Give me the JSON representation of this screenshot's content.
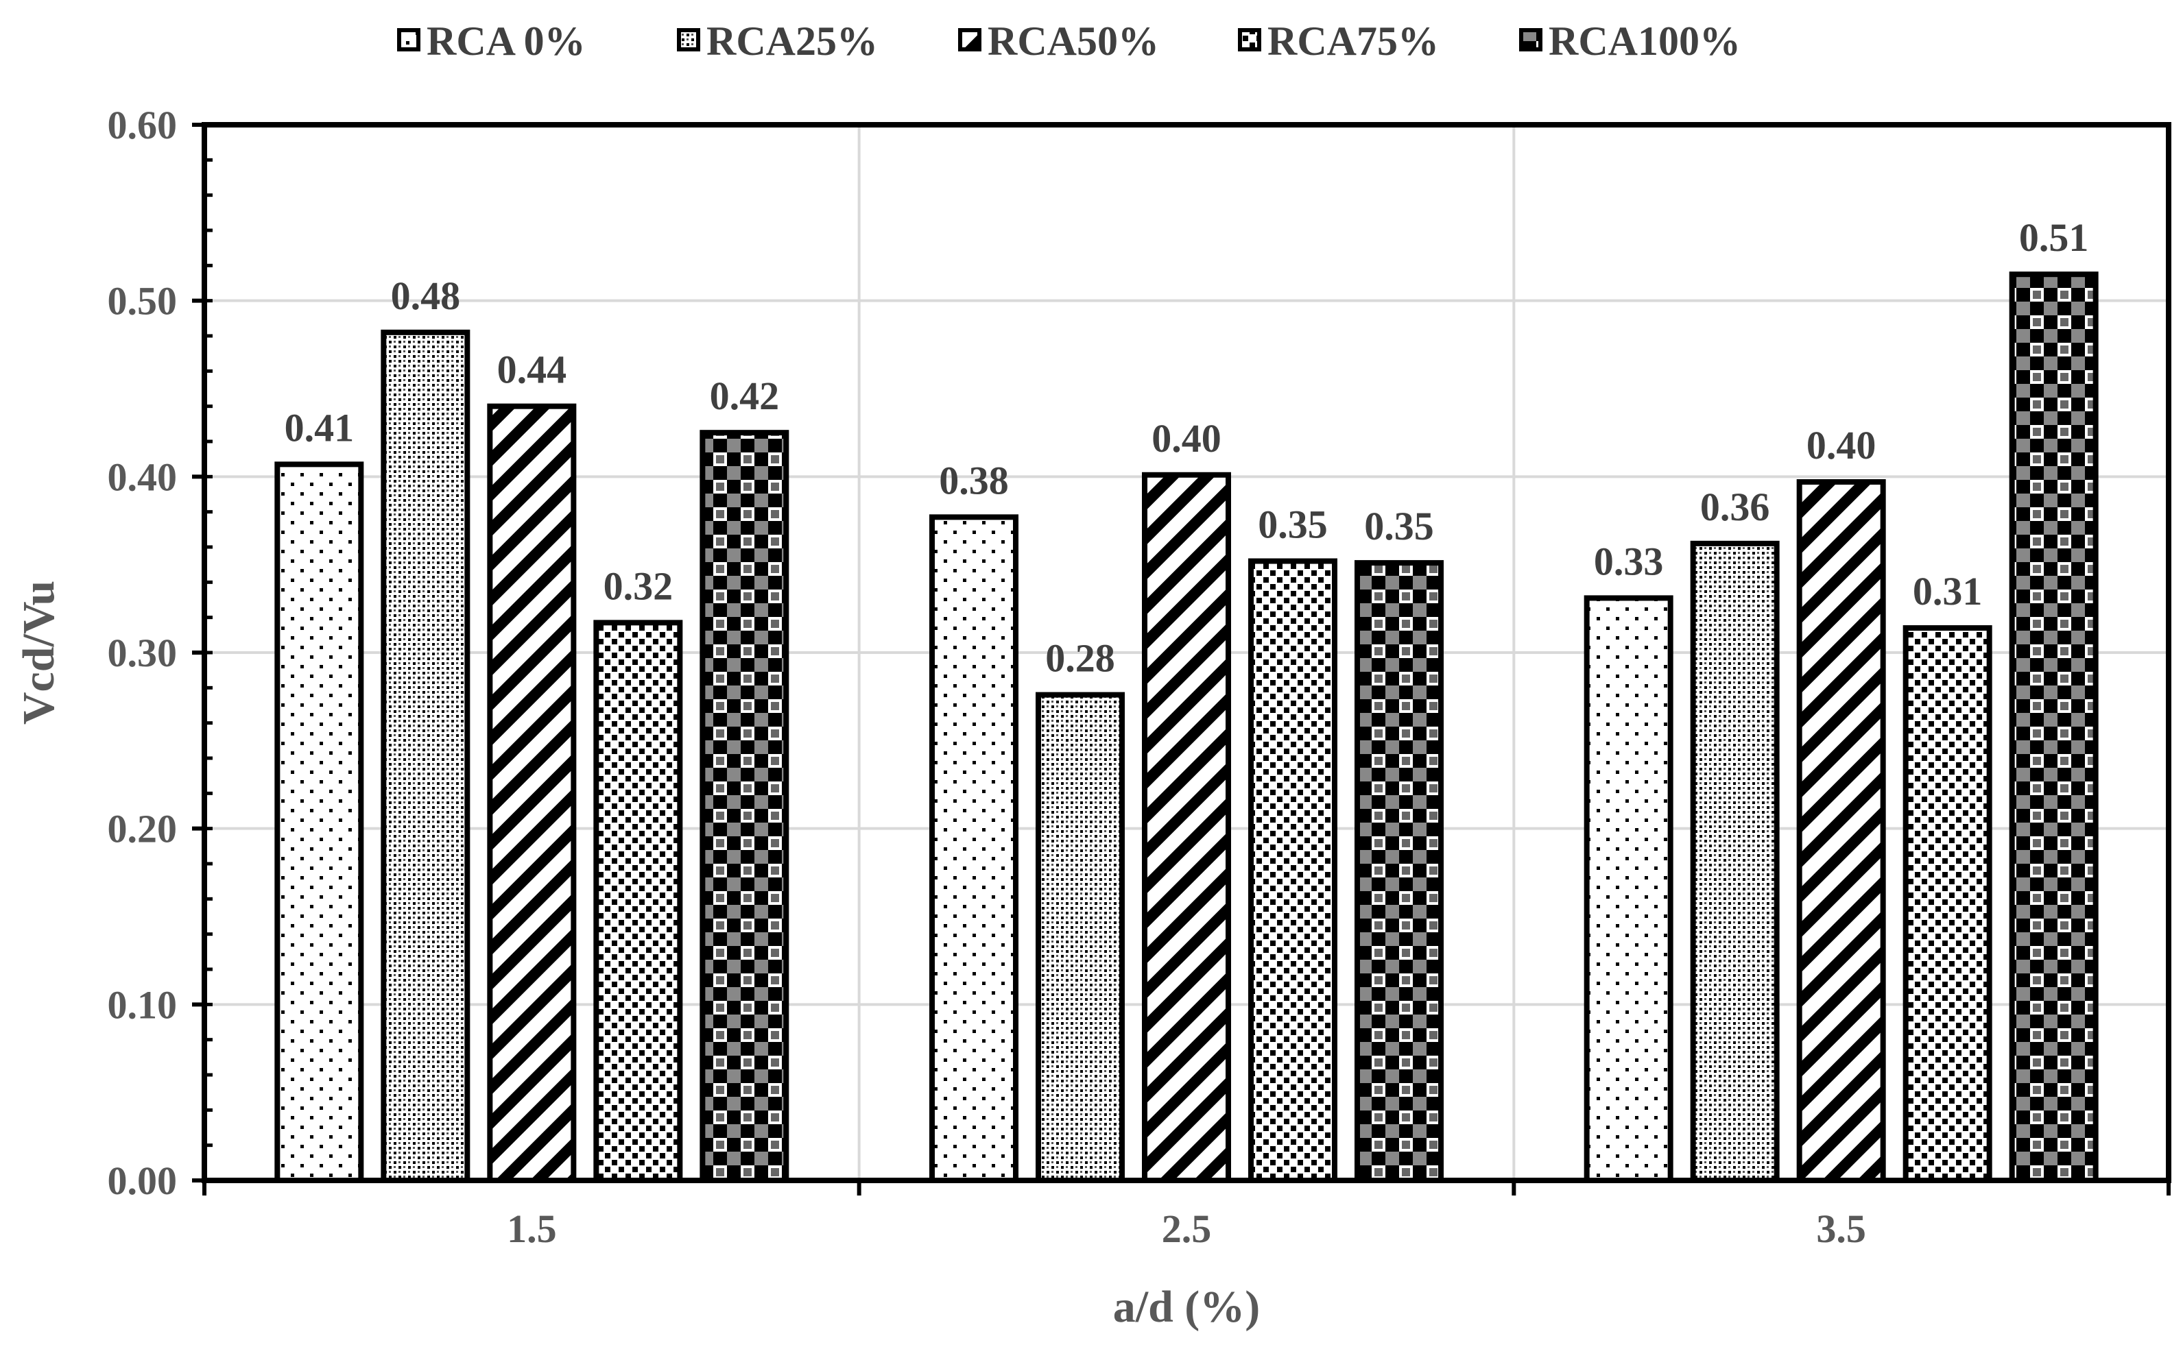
{
  "chart_data": {
    "type": "bar",
    "title": "",
    "xlabel": "a/d (%)",
    "ylabel": "Vcd/Vu",
    "categories": [
      "1.5",
      "2.5",
      "3.5"
    ],
    "ylim": [
      0,
      0.6
    ],
    "yticks": [
      "0.00",
      "0.10",
      "0.20",
      "0.30",
      "0.40",
      "0.50",
      "0.60"
    ],
    "grid": true,
    "legend_position": "top",
    "series": [
      {
        "name": "RCA 0%",
        "pattern": "dots",
        "values": [
          0.407,
          0.377,
          0.331
        ],
        "labels": [
          "0.41",
          "0.38",
          "0.33"
        ]
      },
      {
        "name": "RCA25%",
        "pattern": "fine-checker",
        "values": [
          0.482,
          0.276,
          0.362
        ],
        "labels": [
          "0.48",
          "0.28",
          "0.36"
        ]
      },
      {
        "name": "RCA50%",
        "pattern": "diagonal",
        "values": [
          0.44,
          0.401,
          0.397
        ],
        "labels": [
          "0.44",
          "0.40",
          "0.40"
        ]
      },
      {
        "name": "RCA75%",
        "pattern": "squares",
        "values": [
          0.317,
          0.352,
          0.314
        ],
        "labels": [
          "0.32",
          "0.35",
          "0.31"
        ]
      },
      {
        "name": "RCA100%",
        "pattern": "plaid",
        "values": [
          0.425,
          0.351,
          0.515
        ],
        "labels": [
          "0.42",
          "0.35",
          "0.51"
        ]
      }
    ]
  }
}
